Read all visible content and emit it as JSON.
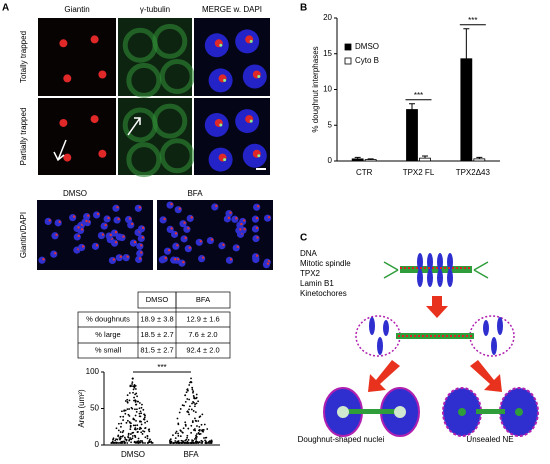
{
  "panel_a": {
    "label": "A",
    "columns": [
      "Giantin",
      "γ-tubulin",
      "MERGE w. DAPI"
    ],
    "rows": [
      "Totally trapped",
      "Partially trapped"
    ]
  },
  "panel_bfa": {
    "columns": [
      "DMSO",
      "BFA"
    ],
    "row_label": "Giantin/DAPI"
  },
  "table": {
    "header": [
      "DMSO",
      "BFA"
    ],
    "rows": [
      [
        "% doughnuts",
        "18.9 ± 3.8",
        "12.9 ± 1.6"
      ],
      [
        "% large",
        "18.5 ± 2.7",
        "7.6 ± 2.0"
      ],
      [
        "% small",
        "81.5 ± 2.7",
        "92.4 ± 2.0"
      ]
    ]
  },
  "panel_b": {
    "label": "B"
  },
  "chart_data": [
    {
      "type": "bar",
      "y_label": "% doughnut interphases",
      "categories": [
        "CTR",
        "TPX2 FL",
        "TPX2Δ43"
      ],
      "series": [
        {
          "name": "DMSO",
          "color": "#000000",
          "values": [
            0.3,
            7.2,
            14.3
          ],
          "errors": [
            0.2,
            0.8,
            4.2
          ]
        },
        {
          "name": "Cyto B",
          "color": "#ffffff",
          "values": [
            0.2,
            0.4,
            0.3
          ],
          "errors": [
            0.1,
            0.3,
            0.2
          ]
        }
      ],
      "annotations": [
        "***",
        "***"
      ],
      "ylim": [
        0,
        20
      ],
      "yticks": [
        0,
        5,
        10,
        15,
        20
      ]
    },
    {
      "type": "dot",
      "y_label": "Area (um²)",
      "categories": [
        "DMSO",
        "BFA"
      ],
      "annotations": [
        "***"
      ],
      "ylim": [
        0,
        100
      ],
      "yticks": [
        0,
        50,
        100
      ]
    }
  ],
  "panel_c": {
    "label": "C",
    "legend": [
      "DNA",
      "Mitotic spindle",
      "TPX2",
      "Lamin B1",
      "Kinetochores"
    ],
    "captions": [
      "Doughnut-shaped nuclei",
      "Unsealed NE"
    ]
  }
}
